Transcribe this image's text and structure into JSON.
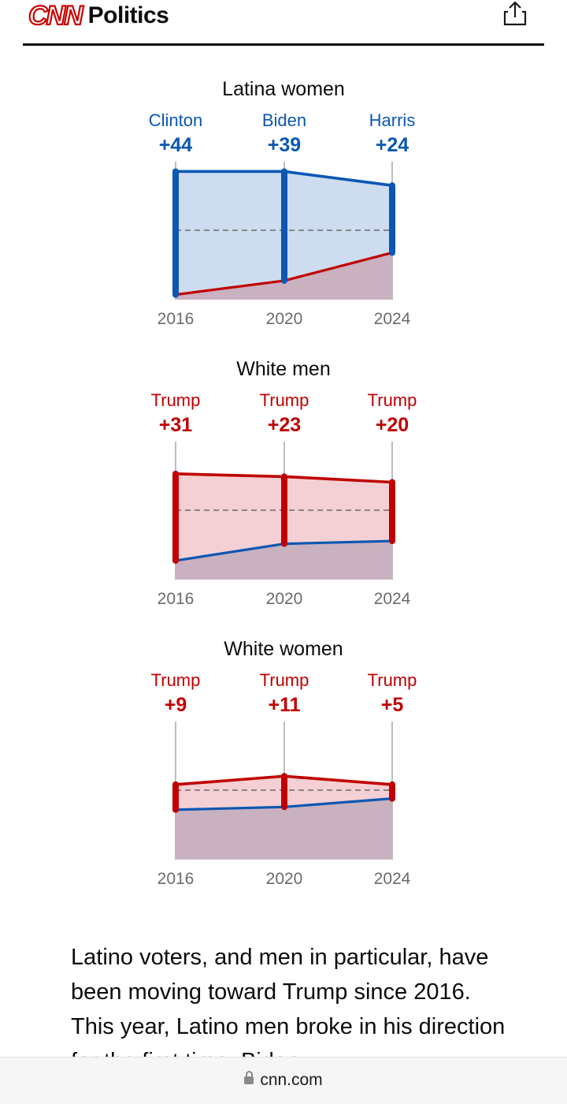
{
  "header": {
    "logo_text": "CNN",
    "section": "Politics",
    "share_icon": "share-icon"
  },
  "colors": {
    "dem": "#0b57b3",
    "rep": "#c00000",
    "dem_fill": "#cddcee",
    "rep_fill": "#f4cfd3",
    "base_fill": "#c9b1c0"
  },
  "charts": [
    {
      "title": "Latina women",
      "years": [
        "2016",
        "2020",
        "2024"
      ],
      "winners": [
        "Clinton",
        "Biden",
        "Harris"
      ],
      "margins": [
        "+44",
        "+39",
        "+24"
      ],
      "winning_party": "dem",
      "dem_share": [
        71,
        71,
        66
      ],
      "rep_share": [
        27,
        32,
        42
      ]
    },
    {
      "title": "White men",
      "years": [
        "2016",
        "2020",
        "2024"
      ],
      "winners": [
        "Trump",
        "Trump",
        "Trump"
      ],
      "margins": [
        "+31",
        "+23",
        "+20"
      ],
      "winning_party": "rep",
      "dem_share": [
        32,
        38,
        39
      ],
      "rep_share": [
        63,
        62,
        60
      ]
    },
    {
      "title": "White women",
      "years": [
        "2016",
        "2020",
        "2024"
      ],
      "winners": [
        "Trump",
        "Trump",
        "Trump"
      ],
      "margins": [
        "+9",
        "+11",
        "+5"
      ],
      "winning_party": "rep",
      "dem_share": [
        43,
        44,
        47
      ],
      "rep_share": [
        52,
        55,
        52
      ]
    }
  ],
  "article": {
    "paragraph": "Latino voters, and men in particular, have been moving toward Trump since 2016. This year, Latino men broke in his direction for the first time. Biden"
  },
  "browser": {
    "url": "cnn.com",
    "lock_icon": "lock-icon"
  }
}
